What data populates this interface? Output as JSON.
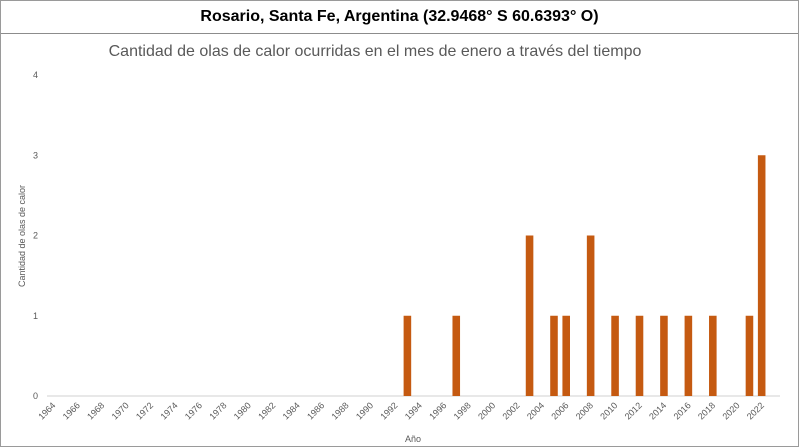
{
  "header": {
    "title": "Rosario, Santa Fe, Argentina (32.9468° S 60.6393° O)"
  },
  "chart_data": {
    "type": "bar",
    "title": "Cantidad de olas de calor ocurridas en el mes de enero a través del tiempo",
    "xlabel": "Año",
    "ylabel": "Cantidad de olas de calor",
    "ylim": [
      0,
      4
    ],
    "yticks": [
      0,
      1,
      2,
      3,
      4
    ],
    "xlim": [
      1964,
      2023
    ],
    "xticks": [
      "1964",
      "1966",
      "1968",
      "1970",
      "1972",
      "1974",
      "1976",
      "1978",
      "1980",
      "1982",
      "1984",
      "1986",
      "1988",
      "1990",
      "1992",
      "1994",
      "1996",
      "1998",
      "2000",
      "2002",
      "2004",
      "2006",
      "2008",
      "2010",
      "2012",
      "2014",
      "2016",
      "2018",
      "2020",
      "2022"
    ],
    "bar_color": "#C55A11",
    "grid": false,
    "legend": "none",
    "points": [
      {
        "x": 1993,
        "y": 1
      },
      {
        "x": 1997,
        "y": 1
      },
      {
        "x": 2003,
        "y": 2
      },
      {
        "x": 2005,
        "y": 1
      },
      {
        "x": 2006,
        "y": 1
      },
      {
        "x": 2008,
        "y": 2
      },
      {
        "x": 2010,
        "y": 1
      },
      {
        "x": 2012,
        "y": 1
      },
      {
        "x": 2014,
        "y": 1
      },
      {
        "x": 2016,
        "y": 1
      },
      {
        "x": 2018,
        "y": 1
      },
      {
        "x": 2021,
        "y": 1
      },
      {
        "x": 2022,
        "y": 3
      }
    ]
  }
}
